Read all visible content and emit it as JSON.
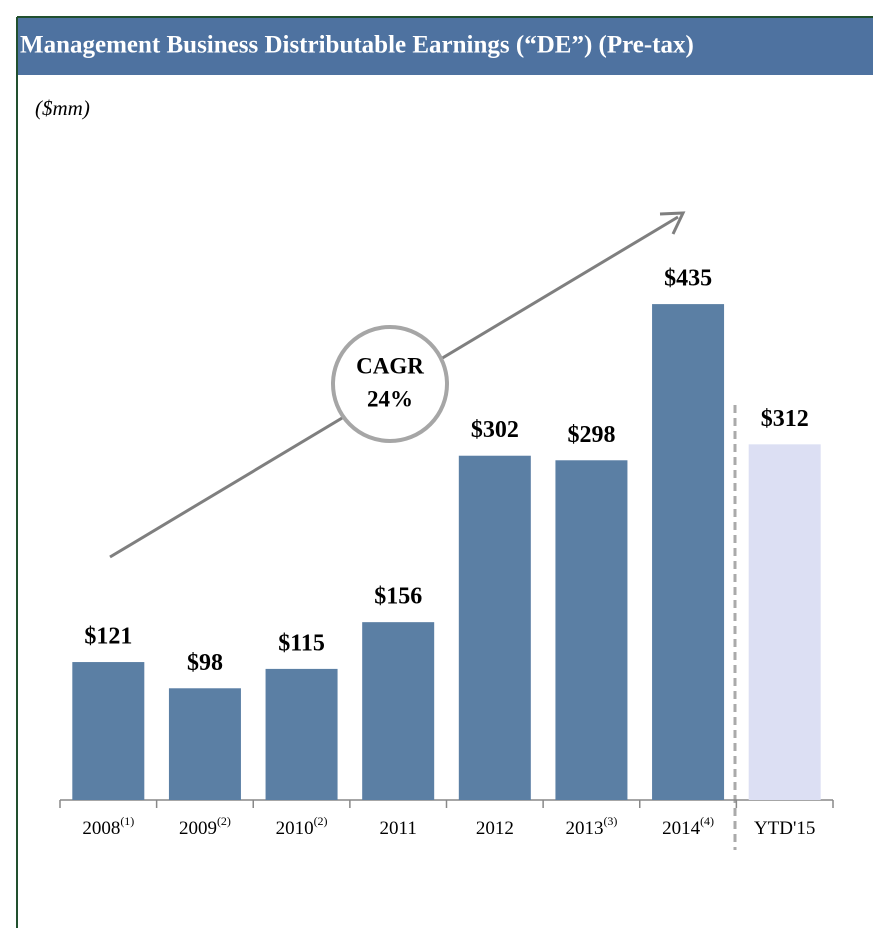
{
  "chart_data": {
    "type": "bar",
    "title": "Management Business Distributable Earnings (“DE”) (Pre-tax)",
    "subtitle": "($mm)",
    "categories": [
      "2008",
      "2009",
      "2010",
      "2011",
      "2012",
      "2013",
      "2014",
      "YTD'15"
    ],
    "category_notes": [
      "(1)",
      "(2)",
      "(2)",
      null,
      null,
      "(3)",
      "(4)",
      null
    ],
    "values": [
      121,
      98,
      115,
      156,
      302,
      298,
      435,
      312
    ],
    "value_labels": [
      "$121",
      "$98",
      "$115",
      "$156",
      "$302",
      "$298",
      "$435",
      "$312"
    ],
    "colors": [
      "#5b7fa4",
      "#5b7fa4",
      "#5b7fa4",
      "#5b7fa4",
      "#5b7fa4",
      "#5b7fa4",
      "#5b7fa4",
      "#dcdff3"
    ],
    "ylim": [
      0,
      600
    ],
    "annotation": [
      "CAGR",
      "24%"
    ]
  }
}
